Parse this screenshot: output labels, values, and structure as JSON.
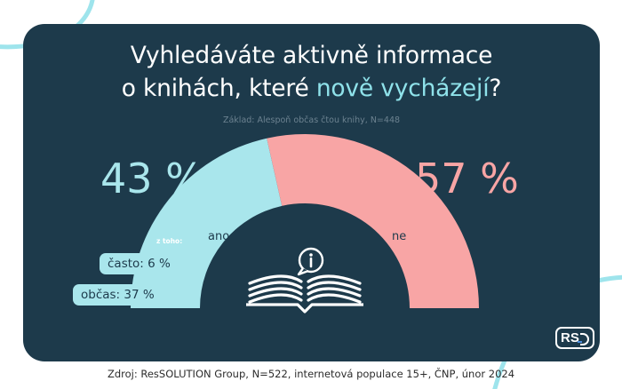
{
  "title": {
    "line1": "Vyhledáváte aktivně informace",
    "line2_plain": "o knihách, které ",
    "line2_accent": "nově vycházejí",
    "line2_end": "?"
  },
  "base_note": "Základ: Alespoň občas čtou knihy, N=448",
  "source": "Zdroj: ResSOLUTION Group, N=522, internetová populace 15+, ČNP, únor 2024",
  "logo_text": "RS",
  "breakdown": {
    "heading": "z toho:",
    "items": [
      {
        "label": "často: 6 %"
      },
      {
        "label": "občas: 37 %"
      }
    ]
  },
  "chart_data": {
    "type": "pie",
    "subtype": "half-donut",
    "categories": [
      "ano",
      "ne"
    ],
    "values": [
      43,
      57
    ],
    "value_labels": [
      "43 %",
      "57 %"
    ],
    "colors": [
      "#a9e6ec",
      "#f8a5a5"
    ],
    "sub_breakdown_of_ano": [
      {
        "category": "často",
        "value": 6
      },
      {
        "category": "občas",
        "value": 37
      }
    ]
  },
  "colors": {
    "card_bg": "#1d3a4b",
    "accent": "#8fe2ea",
    "deco_stroke": "#9ee4ec"
  },
  "icons": [
    "info-icon",
    "open-book-icon"
  ]
}
